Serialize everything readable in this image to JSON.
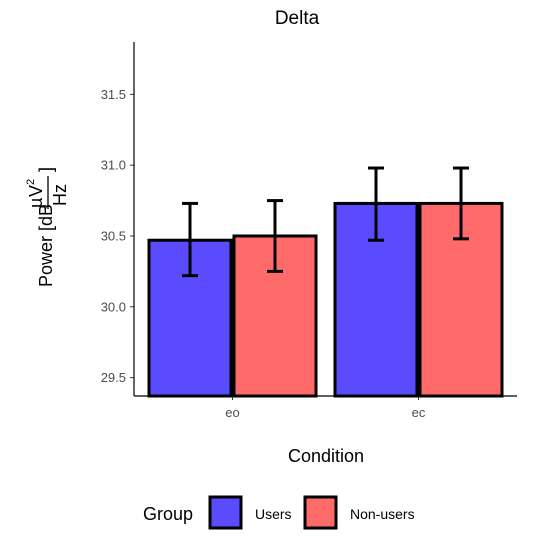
{
  "chart_data": {
    "type": "bar",
    "title": "Delta",
    "xlabel": "Condition",
    "ylabel": {
      "prefix": "Power [dB",
      "mu": "µ",
      "v": "V",
      "exp": "2",
      "den": "Hz",
      "suffix": "]"
    },
    "categories": [
      "eo",
      "ec"
    ],
    "series": [
      {
        "name": "Users",
        "color": "#5a4bff",
        "values": [
          30.47,
          30.73
        ],
        "error_low": [
          30.22,
          30.47
        ],
        "error_high": [
          30.73,
          30.98
        ]
      },
      {
        "name": "Non-users",
        "color": "#ff6b6b",
        "values": [
          30.5,
          30.73
        ],
        "error_low": [
          30.25,
          30.48
        ],
        "error_high": [
          30.75,
          30.98
        ]
      }
    ],
    "ylim": [
      29.37,
      31.87
    ],
    "yticks": [
      29.5,
      30.0,
      30.5,
      31.0,
      31.5
    ],
    "ytick_labels": [
      "29.5",
      "30.0",
      "30.5",
      "31.0",
      "31.5"
    ],
    "grid": false,
    "legend": {
      "title": "Group",
      "position": "bottom"
    }
  }
}
